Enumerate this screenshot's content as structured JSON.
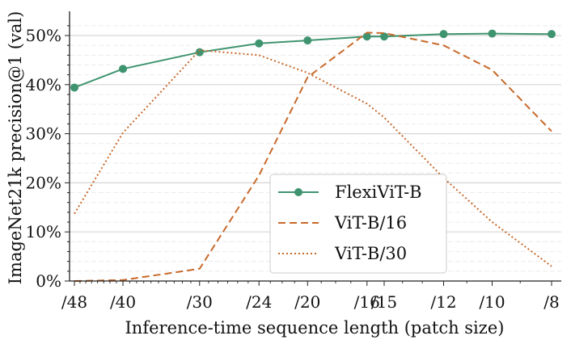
{
  "chart_data": {
    "type": "line",
    "xlabel": "Inference-time sequence length (patch size)",
    "ylabel": "ImageNet21k precision@1 (val)",
    "categories": [
      "/48",
      "/40",
      "/30",
      "/24",
      "/20",
      "/16",
      "/15",
      "/12",
      "/10",
      "/8"
    ],
    "x": [
      48,
      40,
      30,
      24,
      20,
      16,
      15,
      12,
      10,
      8
    ],
    "ylim": [
      0,
      52
    ],
    "yticks": [
      0,
      10,
      20,
      30,
      40,
      50
    ],
    "ytick_labels": [
      "0%",
      "10%",
      "20%",
      "30%",
      "40%",
      "50%"
    ],
    "grid": true,
    "legend_position": "lower-center",
    "series": [
      {
        "name": "FlexiViT-B",
        "color": "#3f9470",
        "style": "solid-markers",
        "values": [
          39.4,
          43.2,
          46.6,
          48.4,
          49.0,
          49.8,
          49.8,
          50.3,
          50.4,
          50.3
        ]
      },
      {
        "name": "ViT-B/16",
        "color": "#c8692a",
        "style": "dashed",
        "values": [
          0.0,
          0.2,
          2.5,
          21.5,
          41.5,
          50.6,
          50.5,
          48.0,
          43.0,
          30.5
        ]
      },
      {
        "name": "ViT-B/30",
        "color": "#c8692a",
        "style": "dotted",
        "values": [
          13.7,
          30.2,
          47.0,
          46.0,
          42.4,
          36.1,
          33.3,
          21.0,
          12.0,
          3.0
        ]
      }
    ]
  }
}
